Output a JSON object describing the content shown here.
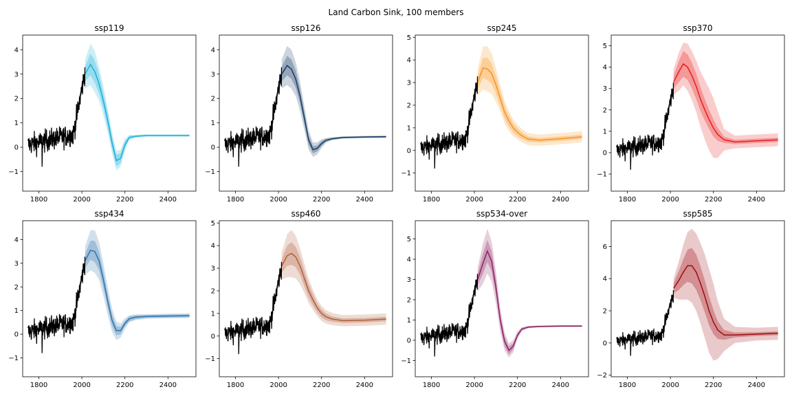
{
  "figure": {
    "suptitle": "Land Carbon Sink, 100 members"
  },
  "chart_data": [
    {
      "type": "line",
      "title": "ssp119",
      "color": "#1ab2da",
      "xlim": [
        1725,
        2530
      ],
      "ylim": [
        -1.8,
        4.6
      ],
      "yticks": [
        -1,
        0,
        1,
        2,
        3,
        4
      ],
      "xticks": [
        1800,
        2000,
        2200,
        2400
      ],
      "historical_color": "#000000",
      "x": [
        2015,
        2040,
        2060,
        2080,
        2100,
        2120,
        2140,
        2160,
        2180,
        2200,
        2220,
        2250,
        2300,
        2400,
        2500
      ],
      "median": [
        3.0,
        3.4,
        3.1,
        2.6,
        1.9,
        1.1,
        0.2,
        -0.55,
        -0.45,
        0.1,
        0.4,
        0.45,
        0.48,
        0.48,
        0.48
      ],
      "band_inner": [
        0.3,
        0.45,
        0.45,
        0.4,
        0.3,
        0.3,
        0.25,
        0.25,
        0.2,
        0.15,
        0.06,
        0.04,
        0.03,
        0.03,
        0.03
      ],
      "band_outer": [
        0.6,
        0.85,
        0.85,
        0.7,
        0.6,
        0.5,
        0.45,
        0.4,
        0.35,
        0.25,
        0.1,
        0.06,
        0.05,
        0.05,
        0.05
      ]
    },
    {
      "type": "line",
      "title": "ssp126",
      "color": "#173c66",
      "xlim": [
        1725,
        2530
      ],
      "ylim": [
        -1.8,
        4.6
      ],
      "yticks": [
        -1,
        0,
        1,
        2,
        3,
        4
      ],
      "xticks": [
        1800,
        2000,
        2200,
        2400
      ],
      "historical_color": "#000000",
      "x": [
        2015,
        2040,
        2060,
        2080,
        2100,
        2120,
        2140,
        2160,
        2180,
        2200,
        2220,
        2250,
        2300,
        2400,
        2500
      ],
      "median": [
        3.0,
        3.35,
        3.2,
        2.8,
        2.1,
        1.2,
        0.3,
        -0.1,
        -0.05,
        0.15,
        0.28,
        0.35,
        0.4,
        0.42,
        0.43
      ],
      "band_inner": [
        0.3,
        0.4,
        0.4,
        0.35,
        0.3,
        0.25,
        0.2,
        0.15,
        0.12,
        0.1,
        0.06,
        0.04,
        0.03,
        0.03,
        0.03
      ],
      "band_outer": [
        0.6,
        0.8,
        0.8,
        0.7,
        0.6,
        0.5,
        0.4,
        0.3,
        0.25,
        0.18,
        0.1,
        0.06,
        0.05,
        0.05,
        0.05
      ]
    },
    {
      "type": "line",
      "title": "ssp245",
      "color": "#f79420",
      "xlim": [
        1725,
        2530
      ],
      "ylim": [
        -1.8,
        5.1
      ],
      "yticks": [
        -1,
        0,
        1,
        2,
        3,
        4,
        5
      ],
      "xticks": [
        1800,
        2000,
        2200,
        2400
      ],
      "historical_color": "#000000",
      "x": [
        2015,
        2040,
        2060,
        2080,
        2100,
        2120,
        2140,
        2160,
        2180,
        2200,
        2220,
        2250,
        2300,
        2400,
        2500
      ],
      "median": [
        3.0,
        3.65,
        3.6,
        3.4,
        2.9,
        2.3,
        1.7,
        1.3,
        1.0,
        0.8,
        0.65,
        0.5,
        0.45,
        0.52,
        0.6
      ],
      "band_inner": [
        0.3,
        0.45,
        0.5,
        0.45,
        0.4,
        0.35,
        0.3,
        0.25,
        0.2,
        0.18,
        0.15,
        0.12,
        0.1,
        0.1,
        0.1
      ],
      "band_outer": [
        0.6,
        0.95,
        1.0,
        0.9,
        0.75,
        0.6,
        0.5,
        0.45,
        0.38,
        0.33,
        0.3,
        0.27,
        0.25,
        0.25,
        0.25
      ]
    },
    {
      "type": "line",
      "title": "ssp370",
      "color": "#e71d1d",
      "xlim": [
        1725,
        2530
      ],
      "ylim": [
        -1.8,
        5.5
      ],
      "yticks": [
        -1,
        0,
        1,
        2,
        3,
        4,
        5
      ],
      "xticks": [
        1800,
        2000,
        2200,
        2400
      ],
      "historical_color": "#000000",
      "x": [
        2015,
        2040,
        2060,
        2080,
        2100,
        2120,
        2140,
        2160,
        2180,
        2200,
        2220,
        2250,
        2300,
        2400,
        2500
      ],
      "median": [
        3.3,
        3.8,
        4.15,
        4.0,
        3.6,
        3.1,
        2.5,
        2.0,
        1.55,
        1.15,
        0.85,
        0.6,
        0.5,
        0.55,
        0.6
      ],
      "band_inner": [
        0.3,
        0.5,
        0.6,
        0.6,
        0.6,
        0.6,
        0.55,
        0.5,
        0.45,
        0.4,
        0.3,
        0.15,
        0.1,
        0.1,
        0.1
      ],
      "band_outer": [
        0.6,
        0.9,
        1.0,
        1.1,
        1.15,
        1.2,
        1.3,
        1.4,
        1.45,
        1.4,
        1.1,
        0.5,
        0.3,
        0.3,
        0.3
      ]
    },
    {
      "type": "line",
      "title": "ssp434",
      "color": "#2f73ab",
      "xlim": [
        1725,
        2530
      ],
      "ylim": [
        -1.8,
        4.8
      ],
      "yticks": [
        -1,
        0,
        1,
        2,
        3,
        4
      ],
      "xticks": [
        1800,
        2000,
        2200,
        2400
      ],
      "historical_color": "#000000",
      "x": [
        2015,
        2040,
        2060,
        2080,
        2100,
        2120,
        2140,
        2160,
        2180,
        2200,
        2220,
        2250,
        2300,
        2400,
        2500
      ],
      "median": [
        3.1,
        3.55,
        3.5,
        3.1,
        2.3,
        1.4,
        0.6,
        0.15,
        0.15,
        0.45,
        0.65,
        0.72,
        0.75,
        0.77,
        0.78
      ],
      "band_inner": [
        0.3,
        0.4,
        0.45,
        0.4,
        0.35,
        0.3,
        0.25,
        0.2,
        0.15,
        0.12,
        0.1,
        0.08,
        0.06,
        0.06,
        0.06
      ],
      "band_outer": [
        0.6,
        0.85,
        0.9,
        0.8,
        0.7,
        0.6,
        0.5,
        0.4,
        0.3,
        0.22,
        0.15,
        0.12,
        0.1,
        0.1,
        0.1
      ]
    },
    {
      "type": "line",
      "title": "ssp460",
      "color": "#b05e39",
      "xlim": [
        1725,
        2530
      ],
      "ylim": [
        -1.8,
        5.1
      ],
      "yticks": [
        -1,
        0,
        1,
        2,
        3,
        4,
        5
      ],
      "xticks": [
        1800,
        2000,
        2200,
        2400
      ],
      "historical_color": "#000000",
      "x": [
        2015,
        2040,
        2060,
        2080,
        2100,
        2120,
        2140,
        2160,
        2180,
        2200,
        2220,
        2250,
        2300,
        2400,
        2500
      ],
      "median": [
        3.1,
        3.55,
        3.65,
        3.5,
        3.1,
        2.55,
        2.0,
        1.6,
        1.25,
        1.0,
        0.85,
        0.75,
        0.68,
        0.7,
        0.75
      ],
      "band_inner": [
        0.3,
        0.45,
        0.5,
        0.45,
        0.4,
        0.35,
        0.3,
        0.25,
        0.2,
        0.18,
        0.15,
        0.12,
        0.1,
        0.1,
        0.1
      ],
      "band_outer": [
        0.6,
        0.95,
        1.05,
        0.95,
        0.8,
        0.65,
        0.55,
        0.45,
        0.38,
        0.33,
        0.3,
        0.27,
        0.25,
        0.25,
        0.25
      ]
    },
    {
      "type": "line",
      "title": "ssp534-over",
      "color": "#8f2365",
      "xlim": [
        1725,
        2530
      ],
      "ylim": [
        -1.8,
        5.9
      ],
      "yticks": [
        -1,
        0,
        1,
        2,
        3,
        4,
        5
      ],
      "xticks": [
        1800,
        2000,
        2200,
        2400
      ],
      "historical_color": "#000000",
      "x": [
        2015,
        2040,
        2060,
        2080,
        2100,
        2120,
        2140,
        2160,
        2180,
        2200,
        2220,
        2250,
        2300,
        2400,
        2500
      ],
      "median": [
        3.0,
        3.8,
        4.4,
        3.9,
        2.6,
        1.0,
        -0.05,
        -0.5,
        -0.3,
        0.25,
        0.55,
        0.65,
        0.68,
        0.7,
        0.7
      ],
      "band_inner": [
        0.3,
        0.5,
        0.55,
        0.5,
        0.4,
        0.3,
        0.25,
        0.2,
        0.15,
        0.1,
        0.06,
        0.04,
        0.03,
        0.03,
        0.03
      ],
      "band_outer": [
        0.6,
        1.0,
        1.1,
        1.0,
        0.8,
        0.6,
        0.45,
        0.35,
        0.3,
        0.2,
        0.1,
        0.06,
        0.05,
        0.05,
        0.05
      ]
    },
    {
      "type": "line",
      "title": "ssp585",
      "color": "#9e0b0f",
      "xlim": [
        1725,
        2530
      ],
      "ylim": [
        -2.1,
        7.6
      ],
      "yticks": [
        -2,
        0,
        2,
        4,
        6
      ],
      "xticks": [
        1800,
        2000,
        2200,
        2400
      ],
      "historical_color": "#000000",
      "x": [
        2015,
        2040,
        2060,
        2080,
        2100,
        2120,
        2140,
        2160,
        2180,
        2200,
        2220,
        2250,
        2300,
        2400,
        2500
      ],
      "median": [
        3.4,
        3.9,
        4.4,
        4.8,
        4.8,
        4.4,
        3.7,
        2.9,
        2.0,
        1.3,
        0.8,
        0.5,
        0.5,
        0.55,
        0.6
      ],
      "band_inner": [
        0.3,
        0.6,
        0.8,
        1.0,
        1.1,
        1.1,
        1.05,
        1.0,
        0.9,
        0.75,
        0.55,
        0.3,
        0.15,
        0.12,
        0.12
      ],
      "band_outer": [
        0.6,
        1.2,
        1.7,
        2.1,
        2.3,
        2.4,
        2.5,
        2.6,
        2.6,
        2.4,
        1.8,
        1.0,
        0.5,
        0.4,
        0.4
      ]
    }
  ]
}
